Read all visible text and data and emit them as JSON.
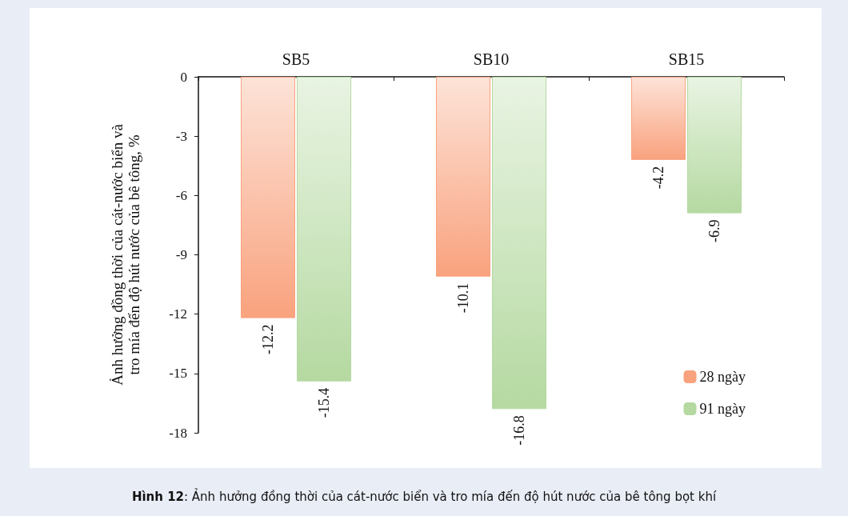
{
  "chart_data": {
    "type": "bar",
    "categories": [
      "SB5",
      "SB10",
      "SB15"
    ],
    "series": [
      {
        "name": "28 ngày",
        "color": "#f9a27e",
        "values": [
          -12.2,
          -10.1,
          -4.2
        ]
      },
      {
        "name": "91 ngày",
        "color": "#b5d9a1",
        "values": [
          -15.4,
          -16.8,
          -6.9
        ]
      }
    ],
    "ylabel": "Ảnh hưởng đồng thời của cát-nước biển và tro mía đến độ hút nước của bê tông, %",
    "ylim": [
      -18,
      0
    ],
    "yticks": [
      0,
      -3,
      -6,
      -9,
      -12,
      -15,
      -18
    ],
    "data_labels": true,
    "grid": false,
    "legend": "bottom right",
    "annotations": [
      "Hình 12: Ảnh hưởng đồng thời của cát-nước biển và tro mía đến độ hút nước của bê tông bọt khí"
    ]
  }
}
